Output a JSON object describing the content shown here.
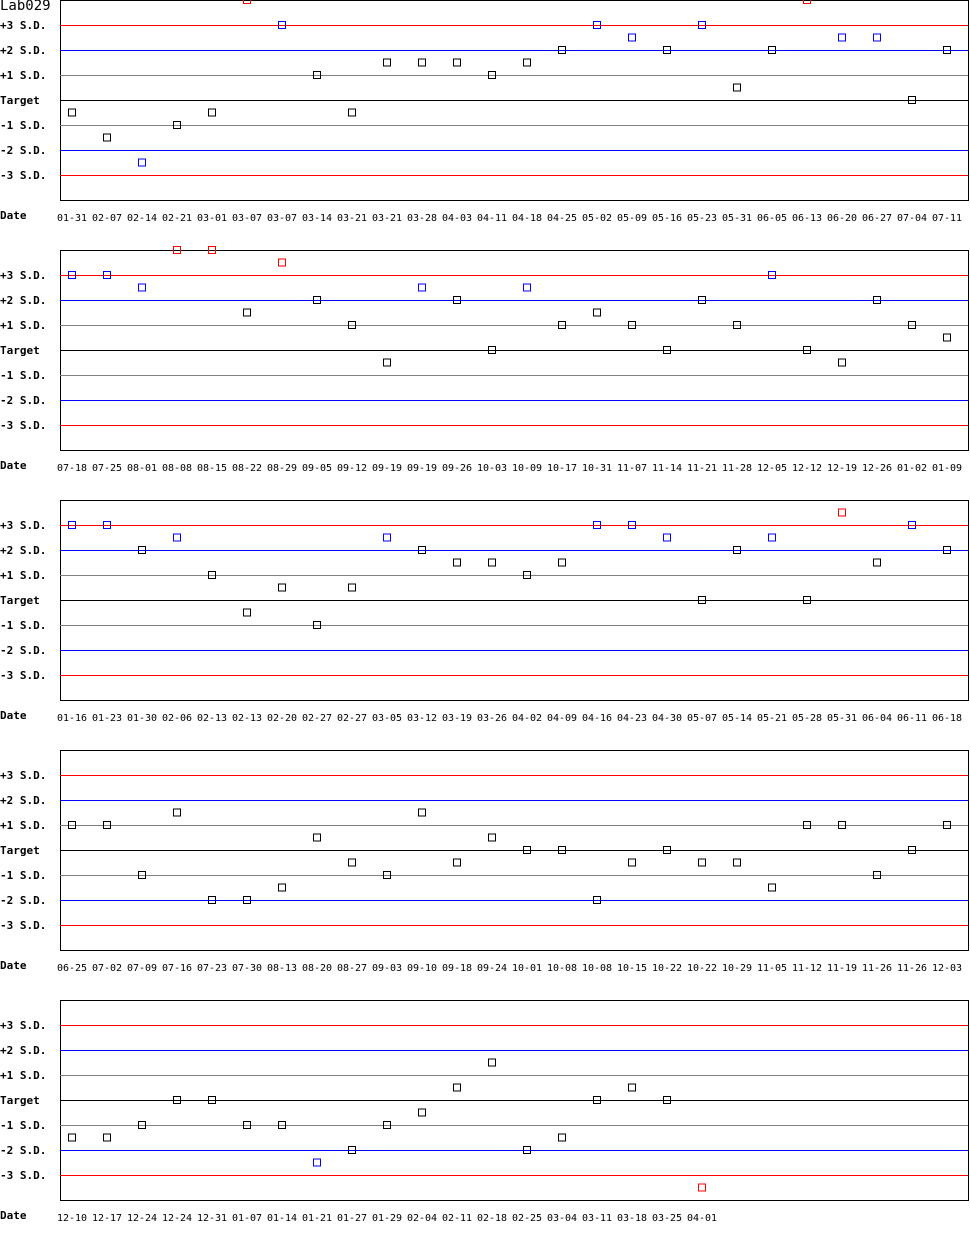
{
  "title": "Lab029",
  "chart_data": {
    "type": "scatter",
    "title": "Lab029",
    "ylabels": [
      "+3 S.D.",
      "+2 S.D.",
      "+1 S.D.",
      "Target",
      "-1 S.D.",
      "-2 S.D.",
      "-3 S.D."
    ],
    "xlabel": "Date",
    "yunit": "S.D. from target",
    "ylim": [
      -4,
      4
    ],
    "colors": {
      "in_control": "#000000",
      "warning_2_3sd": "#0000ff",
      "out_3sd": "#ff0000",
      "line_1sd": "#808080",
      "line_2sd": "#0000ff",
      "line_3sd": "#ff0000",
      "line_target": "#000000"
    },
    "panels": [
      {
        "dates": [
          "01-31",
          "02-07",
          "02-14",
          "02-21",
          "03-01",
          "03-07",
          "03-07",
          "03-14",
          "03-21",
          "03-21",
          "03-28",
          "04-03",
          "04-11",
          "04-18",
          "04-25",
          "05-02",
          "05-09",
          "05-16",
          "05-23",
          "05-31",
          "06-05",
          "06-13",
          "06-20",
          "06-27",
          "07-04",
          "07-11"
        ],
        "values": [
          -0.5,
          -1.5,
          -2.5,
          -1,
          -0.5,
          4,
          3,
          1,
          -0.5,
          1.5,
          1.5,
          1.5,
          1,
          1.5,
          2,
          3,
          2.5,
          2,
          3,
          0.5,
          2,
          4,
          2.5,
          2.5,
          0,
          2
        ]
      },
      {
        "dates": [
          "07-18",
          "07-25",
          "08-01",
          "08-08",
          "08-15",
          "08-22",
          "08-29",
          "09-05",
          "09-12",
          "09-19",
          "09-19",
          "09-26",
          "10-03",
          "10-09",
          "10-17",
          "10-31",
          "11-07",
          "11-14",
          "11-21",
          "11-28",
          "12-05",
          "12-12",
          "12-19",
          "12-26",
          "01-02",
          "01-09"
        ],
        "values": [
          3,
          3,
          2.5,
          4,
          4,
          1.5,
          3.5,
          2,
          1,
          -0.5,
          2.5,
          2,
          0,
          2.5,
          1,
          1.5,
          1,
          0,
          2,
          1,
          3,
          0,
          -0.5,
          2,
          1,
          0.5
        ]
      },
      {
        "dates": [
          "01-16",
          "01-23",
          "01-30",
          "02-06",
          "02-13",
          "02-13",
          "02-20",
          "02-27",
          "02-27",
          "03-05",
          "03-12",
          "03-19",
          "03-26",
          "04-02",
          "04-09",
          "04-16",
          "04-23",
          "04-30",
          "05-07",
          "05-14",
          "05-21",
          "05-28",
          "05-31",
          "06-04",
          "06-11",
          "06-18"
        ],
        "values": [
          3,
          3,
          2,
          2.5,
          1,
          -0.5,
          0.5,
          -1,
          0.5,
          2.5,
          2,
          1.5,
          1.5,
          1,
          1.5,
          3,
          3,
          2.5,
          0,
          2,
          2.5,
          0,
          3.5,
          1.5,
          3,
          2
        ]
      },
      {
        "dates": [
          "06-25",
          "07-02",
          "07-09",
          "07-16",
          "07-23",
          "07-30",
          "08-13",
          "08-20",
          "08-27",
          "09-03",
          "09-10",
          "09-18",
          "09-24",
          "10-01",
          "10-08",
          "10-08",
          "10-15",
          "10-22",
          "10-22",
          "10-29",
          "11-05",
          "11-12",
          "11-19",
          "11-26",
          "11-26",
          "12-03"
        ],
        "values": [
          1,
          1,
          -1,
          1.5,
          -2,
          -2,
          -1.5,
          0.5,
          -0.5,
          -1,
          1.5,
          -0.5,
          0.5,
          0,
          0,
          -2,
          -0.5,
          0,
          -0.5,
          -0.5,
          -1.5,
          1,
          1,
          -1,
          0,
          1
        ]
      },
      {
        "dates": [
          "12-10",
          "12-17",
          "12-24",
          "12-24",
          "12-31",
          "01-07",
          "01-14",
          "01-21",
          "01-27",
          "01-29",
          "02-04",
          "02-11",
          "02-18",
          "02-25",
          "03-04",
          "03-11",
          "03-18",
          "03-25",
          "04-01"
        ],
        "values": [
          -1.5,
          -1.5,
          -1,
          0,
          0,
          -1,
          -1,
          -2.5,
          -2,
          -1,
          -0.5,
          0.5,
          1.5,
          -2,
          -1.5,
          0,
          0.5,
          0,
          -3.5
        ]
      }
    ]
  }
}
